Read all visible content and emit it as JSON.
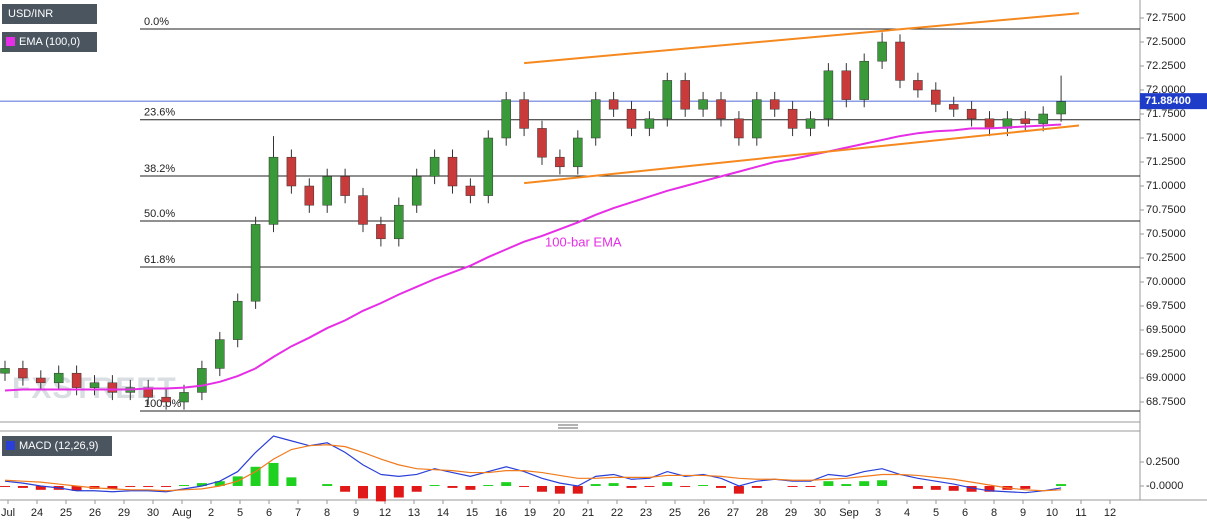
{
  "chart_data": [
    {
      "type": "candlestick",
      "symbol": "USD/INR",
      "indicator": "EMA (100,0)",
      "indicator_color": "#e62ee6",
      "watermark": "FXSTREET",
      "annotation": "100-bar EMA",
      "up_color": "#3a9a3a",
      "down_color": "#c93a3a",
      "ylim": [
        68.5625,
        72.9375
      ],
      "yticks": [
        {
          "value": 68.75,
          "label": "68.7500"
        },
        {
          "value": 69.0,
          "label": "69.0000"
        },
        {
          "value": 69.25,
          "label": "69.2500"
        },
        {
          "value": 69.5,
          "label": "69.5000"
        },
        {
          "value": 69.75,
          "label": "69.7500"
        },
        {
          "value": 70.0,
          "label": "70.0000"
        },
        {
          "value": 70.25,
          "label": "70.2500"
        },
        {
          "value": 70.5,
          "label": "70.5000"
        },
        {
          "value": 70.75,
          "label": "70.7500"
        },
        {
          "value": 71.0,
          "label": "71.0000"
        },
        {
          "value": 71.25,
          "label": "71.2500"
        },
        {
          "value": 71.5,
          "label": "71.5000"
        },
        {
          "value": 71.75,
          "label": "71.7500"
        },
        {
          "value": 72.0,
          "label": "72.0000"
        },
        {
          "value": 72.25,
          "label": "72.2500"
        },
        {
          "value": 72.5,
          "label": "72.5000"
        },
        {
          "value": 72.75,
          "label": "72.7500"
        }
      ],
      "xtick_labels": [
        "Jul",
        "24",
        "25",
        "26",
        "29",
        "30",
        "Aug",
        "2",
        "5",
        "6",
        "7",
        "8",
        "9",
        "12",
        "13",
        "14",
        "15",
        "16",
        "19",
        "20",
        "21",
        "22",
        "23",
        "25",
        "26",
        "27",
        "28",
        "29",
        "30",
        "Sep",
        "3",
        "4",
        "5",
        "6",
        "8",
        "9",
        "10",
        "11",
        "12"
      ],
      "open": [
        69.05,
        69.1,
        69.0,
        68.95,
        69.05,
        68.9,
        68.95,
        68.85,
        68.9,
        68.8,
        68.75,
        68.85,
        69.1,
        69.4,
        69.8,
        70.6,
        71.3,
        71.0,
        70.8,
        71.1,
        70.9,
        70.6,
        70.45,
        70.8,
        71.1,
        71.3,
        71.0,
        70.9,
        71.5,
        71.9,
        71.6,
        71.3,
        71.2,
        71.5,
        71.9,
        71.8,
        71.6,
        71.7,
        72.1,
        71.8,
        71.9,
        71.7,
        71.5,
        71.9,
        71.8,
        71.6,
        71.7,
        72.2,
        71.9,
        72.3,
        72.5,
        72.1,
        72.0,
        71.85,
        71.8,
        71.7,
        71.6,
        71.7,
        71.65,
        71.75
      ],
      "high": [
        69.18,
        69.18,
        69.08,
        69.13,
        69.13,
        69.03,
        69.03,
        68.98,
        68.98,
        68.88,
        68.93,
        69.18,
        69.48,
        69.88,
        70.68,
        71.52,
        71.38,
        71.08,
        71.18,
        71.18,
        70.98,
        70.68,
        70.88,
        71.18,
        71.38,
        71.38,
        71.08,
        71.58,
        71.98,
        71.98,
        71.68,
        71.38,
        71.58,
        71.98,
        71.98,
        71.88,
        71.78,
        72.18,
        72.18,
        71.98,
        71.98,
        71.78,
        71.98,
        71.98,
        71.88,
        71.78,
        72.28,
        72.28,
        72.38,
        72.6,
        72.58,
        72.18,
        72.08,
        71.93,
        71.88,
        71.78,
        71.78,
        71.78,
        71.83,
        72.15
      ],
      "low": [
        68.97,
        68.92,
        68.87,
        68.87,
        68.82,
        68.82,
        68.77,
        68.77,
        68.72,
        68.67,
        68.67,
        68.77,
        69.02,
        69.32,
        69.72,
        70.52,
        70.92,
        70.72,
        70.72,
        70.82,
        70.52,
        70.37,
        70.37,
        70.72,
        71.02,
        70.92,
        70.82,
        70.82,
        71.42,
        71.52,
        71.22,
        71.12,
        71.12,
        71.42,
        71.72,
        71.52,
        71.52,
        71.62,
        71.72,
        71.72,
        71.62,
        71.42,
        71.42,
        71.72,
        71.52,
        71.52,
        71.62,
        71.82,
        71.82,
        72.22,
        72.02,
        71.92,
        71.77,
        71.72,
        71.62,
        71.52,
        71.52,
        71.57,
        71.57,
        71.67
      ],
      "close": [
        69.1,
        69.0,
        68.95,
        69.05,
        68.9,
        68.95,
        68.85,
        68.9,
        68.8,
        68.75,
        68.85,
        69.1,
        69.4,
        69.8,
        70.6,
        71.3,
        71.0,
        70.8,
        71.1,
        70.9,
        70.6,
        70.45,
        70.8,
        71.1,
        71.3,
        71.0,
        70.9,
        71.5,
        71.9,
        71.6,
        71.3,
        71.2,
        71.5,
        71.9,
        71.8,
        71.6,
        71.7,
        72.1,
        71.8,
        71.9,
        71.7,
        71.5,
        71.9,
        71.8,
        71.6,
        71.7,
        72.2,
        71.9,
        72.3,
        72.5,
        72.1,
        72.0,
        71.85,
        71.8,
        71.7,
        71.6,
        71.7,
        71.65,
        71.75,
        71.88
      ],
      "ema": [
        68.87,
        68.88,
        68.88,
        68.88,
        68.88,
        68.88,
        68.88,
        68.88,
        68.89,
        68.89,
        68.9,
        68.92,
        68.96,
        69.02,
        69.1,
        69.22,
        69.33,
        69.42,
        69.52,
        69.6,
        69.7,
        69.78,
        69.87,
        69.95,
        70.03,
        70.1,
        70.17,
        70.26,
        70.34,
        70.42,
        70.48,
        70.55,
        70.62,
        70.7,
        70.77,
        70.83,
        70.89,
        70.95,
        71.0,
        71.05,
        71.1,
        71.15,
        71.2,
        71.25,
        71.28,
        71.32,
        71.36,
        71.4,
        71.44,
        71.48,
        71.52,
        71.55,
        71.57,
        71.58,
        71.6,
        71.6,
        71.61,
        71.62,
        71.63,
        71.64
      ],
      "trendlines": [
        {
          "x": [
            29,
            60
          ],
          "y": [
            72.28,
            72.8
          ],
          "color": "#f5891f"
        },
        {
          "x": [
            29,
            60
          ],
          "y": [
            71.03,
            71.63
          ],
          "color": "#f5891f"
        }
      ],
      "fib_levels": [
        {
          "label": "0.0%",
          "value": 72.635
        },
        {
          "label": "23.6%",
          "value": 71.69
        },
        {
          "label": "38.2%",
          "value": 71.104
        },
        {
          "label": "50.0%",
          "value": 70.635
        },
        {
          "label": "61.8%",
          "value": 70.156
        },
        {
          "label": "100.0%",
          "value": 68.656
        }
      ],
      "last_price": {
        "value": 71.884,
        "label": "71.88400"
      },
      "last_price_color": "#1e3cc8"
    },
    {
      "type": "macd",
      "title": "MACD (12,26,9)",
      "ylim": [
        -0.146,
        0.5625
      ],
      "yticks": [
        {
          "value": 0.25,
          "label": "0.2500"
        },
        {
          "value": 0,
          "label": "-0.0000"
        }
      ],
      "series": [
        {
          "name": "MACD",
          "color": "#2a3fd6",
          "values": [
            0.05,
            0.03,
            0.0,
            -0.02,
            -0.05,
            -0.05,
            -0.06,
            -0.05,
            -0.05,
            -0.06,
            -0.03,
            0.0,
            0.05,
            0.15,
            0.35,
            0.52,
            0.47,
            0.42,
            0.45,
            0.35,
            0.22,
            0.12,
            0.1,
            0.12,
            0.18,
            0.14,
            0.1,
            0.15,
            0.2,
            0.15,
            0.08,
            0.03,
            0.0,
            0.1,
            0.12,
            0.07,
            0.08,
            0.15,
            0.1,
            0.12,
            0.08,
            0.0,
            0.05,
            0.07,
            0.05,
            0.05,
            0.12,
            0.1,
            0.15,
            0.18,
            0.12,
            0.08,
            0.05,
            0.02,
            -0.02,
            -0.05,
            -0.06,
            -0.07,
            -0.05,
            -0.02
          ]
        },
        {
          "name": "Signal",
          "color": "#f07a1e",
          "values": [
            0.06,
            0.05,
            0.04,
            0.02,
            0.0,
            -0.02,
            -0.03,
            -0.04,
            -0.04,
            -0.05,
            -0.04,
            -0.03,
            0.0,
            0.05,
            0.15,
            0.28,
            0.38,
            0.42,
            0.43,
            0.41,
            0.35,
            0.28,
            0.22,
            0.18,
            0.17,
            0.16,
            0.14,
            0.14,
            0.16,
            0.16,
            0.14,
            0.11,
            0.08,
            0.08,
            0.09,
            0.09,
            0.09,
            0.11,
            0.11,
            0.11,
            0.1,
            0.08,
            0.07,
            0.07,
            0.06,
            0.06,
            0.07,
            0.08,
            0.1,
            0.12,
            0.12,
            0.11,
            0.09,
            0.07,
            0.04,
            0.01,
            -0.02,
            -0.04,
            -0.05,
            -0.04
          ]
        }
      ],
      "histogram": [
        -0.01,
        -0.02,
        -0.04,
        -0.04,
        -0.05,
        -0.03,
        -0.03,
        -0.01,
        -0.01,
        -0.01,
        0.01,
        0.03,
        0.05,
        0.1,
        0.2,
        0.24,
        0.09,
        0.0,
        0.02,
        -0.06,
        -0.13,
        -0.16,
        -0.12,
        -0.06,
        0.01,
        -0.02,
        -0.04,
        0.01,
        0.04,
        -0.01,
        -0.06,
        -0.08,
        -0.08,
        0.02,
        0.03,
        -0.02,
        -0.01,
        0.04,
        -0.01,
        0.01,
        -0.02,
        -0.08,
        -0.02,
        0.0,
        -0.01,
        -0.01,
        0.05,
        0.02,
        0.05,
        0.06,
        0.0,
        -0.03,
        -0.04,
        -0.05,
        -0.06,
        -0.06,
        -0.04,
        -0.03,
        0.0,
        0.02
      ],
      "histogram_up_color": "#1fd11f",
      "histogram_down_color": "#e01818"
    }
  ]
}
